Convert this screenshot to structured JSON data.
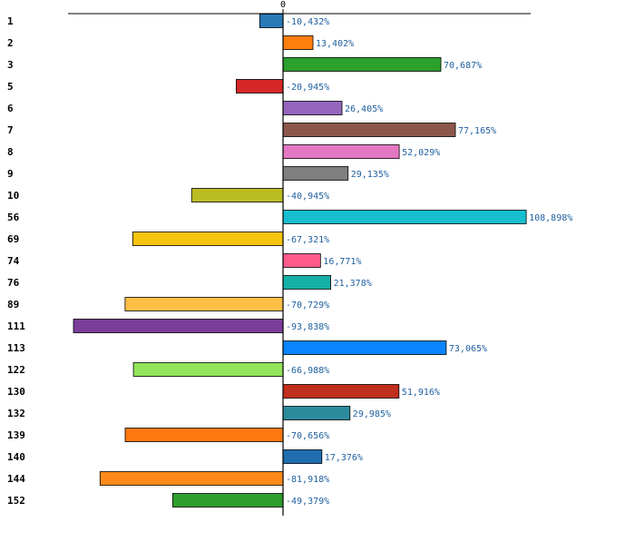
{
  "chart_data": {
    "type": "bar",
    "orientation": "horizontal",
    "title": "",
    "xlabel": "",
    "ylabel": "",
    "x_tick_labels": [
      "0"
    ],
    "xlim": [
      -100,
      120
    ],
    "value_suffix": "%",
    "decimal_separator": ",",
    "categories": [
      "1",
      "2",
      "3",
      "5",
      "6",
      "7",
      "8",
      "9",
      "10",
      "56",
      "69",
      "74",
      "76",
      "89",
      "111",
      "113",
      "122",
      "130",
      "132",
      "139",
      "140",
      "144",
      "152"
    ],
    "values": [
      -10.432,
      13.402,
      70.687,
      -20.945,
      26.405,
      77.165,
      52.029,
      29.135,
      -40.945,
      108.898,
      -67.321,
      16.771,
      21.378,
      -70.729,
      -93.838,
      73.065,
      -66.988,
      51.916,
      29.985,
      -70.656,
      17.376,
      -81.918,
      -49.379
    ],
    "value_labels": [
      "-10,432%",
      "13,402%",
      "70,687%",
      "-20,945%",
      "26,405%",
      "77,165%",
      "52,029%",
      "29,135%",
      "-40,945%",
      "108,898%",
      "-67,321%",
      "16,771%",
      "21,378%",
      "-70,729%",
      "-93,838%",
      "73,065%",
      "-66,988%",
      "51,916%",
      "29,985%",
      "-70,656%",
      "17,376%",
      "-81,918%",
      "-49,379%"
    ],
    "colors": [
      "#2a7ab8",
      "#ff7f0e",
      "#2ca02c",
      "#d62728",
      "#9467bd",
      "#8c564b",
      "#e377c2",
      "#7f7f7f",
      "#bcbd22",
      "#17becf",
      "#f5c40f",
      "#ff5b8c",
      "#15b0a6",
      "#ffbf47",
      "#7a3d9a",
      "#0b84ff",
      "#93e55a",
      "#c12f1f",
      "#2e8b9e",
      "#ff7810",
      "#1f6fb0",
      "#ff8a1a",
      "#2e9e2e"
    ]
  }
}
